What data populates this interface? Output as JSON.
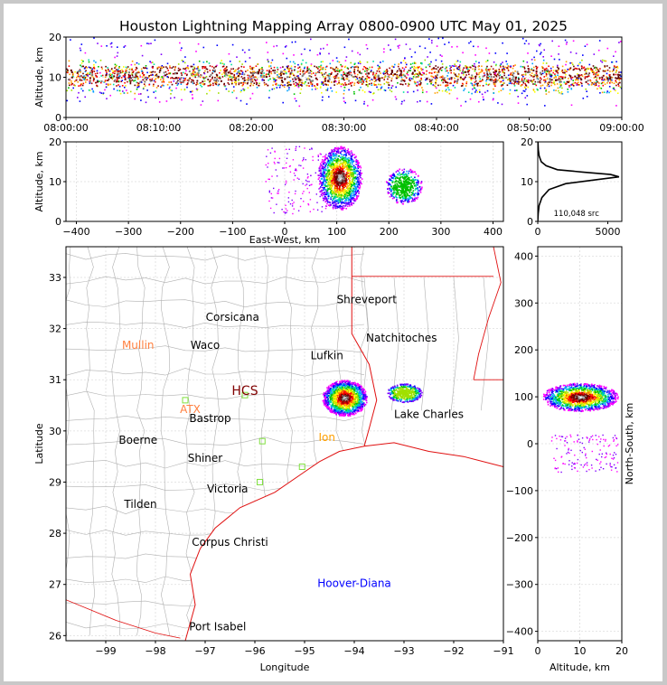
{
  "figure": {
    "title": "Houston Lightning Mapping Array 0800-0900 UTC May 01, 2025"
  },
  "colors": {
    "frame": "#c8c8c8",
    "map_lines": "#b0b0b0",
    "coast_state": "#e01010",
    "grid": "#dddddd",
    "density_scale": [
      "#ff00ff",
      "#8000ff",
      "#0000ff",
      "#00a0ff",
      "#00e0a0",
      "#00c000",
      "#a0e000",
      "#ffff00",
      "#ffa000",
      "#ff0000",
      "#a00000",
      "#600000",
      "#808080",
      "#c0c0c0",
      "#ffffff"
    ],
    "station_colors": {
      "Mullin": "#ff8040",
      "ATX": "#ff8040",
      "Hoover-Diana": "#0000ff"
    }
  },
  "chart_data": [
    {
      "id": "time_altitude",
      "type": "heatmap",
      "xlabel": "",
      "ylabel": "Altitude, km",
      "xticks": [
        "08:00:00",
        "08:10:00",
        "08:20:00",
        "08:30:00",
        "08:40:00",
        "08:50:00",
        "09:00:00"
      ],
      "ylim": [
        0,
        20
      ],
      "yticks": [
        0,
        10,
        20
      ],
      "source_band_km": {
        "core_top": 13,
        "core_bottom": 8,
        "outer_top": 14.5,
        "outer_bottom": 6
      }
    },
    {
      "id": "eastwest_altitude",
      "type": "heatmap",
      "xlabel": "East-West, km",
      "ylabel": "Altitude, km",
      "xlim": [
        -420,
        420
      ],
      "xticks": [
        -400,
        -300,
        -200,
        -100,
        0,
        100,
        200,
        300,
        400
      ],
      "ylim": [
        0,
        20
      ],
      "yticks": [
        0,
        10,
        20
      ],
      "cells": [
        {
          "x": 105,
          "alt": 11,
          "width_km": 85,
          "height_km": 16
        },
        {
          "x": 228,
          "alt": 9,
          "width_km": 70,
          "height_km": 9
        }
      ]
    },
    {
      "id": "altitude_histogram",
      "type": "line",
      "xlim": [
        0,
        6000
      ],
      "xticks": [
        0,
        5000
      ],
      "ylim": [
        0,
        20
      ],
      "yticks": [
        0,
        10,
        20
      ],
      "annotation": "110,048 src",
      "x": [
        0,
        30,
        100,
        300,
        800,
        2000,
        4200,
        5800,
        5200,
        3200,
        1400,
        600,
        250,
        100,
        40,
        10
      ],
      "y": [
        0,
        2,
        4,
        6,
        8,
        9.5,
        10.5,
        11.2,
        11.8,
        12.4,
        13,
        14,
        15,
        16.5,
        18,
        20
      ]
    },
    {
      "id": "plan_view",
      "type": "scatter",
      "xlabel": "Longitude",
      "ylabel": "Latitude",
      "xlim": [
        -99.8,
        -91.0
      ],
      "ylim": [
        25.9,
        33.6
      ],
      "xticks": [
        -99,
        -98,
        -97,
        -96,
        -95,
        -94,
        -93,
        -92,
        -91
      ],
      "yticks": [
        26,
        27,
        28,
        29,
        30,
        31,
        32,
        33
      ],
      "cells": [
        {
          "lon": -94.2,
          "lat": 30.65,
          "rx": 0.45,
          "ry": 0.35
        },
        {
          "lon": -93.0,
          "lat": 30.75,
          "rx": 0.35,
          "ry": 0.18
        }
      ]
    },
    {
      "id": "altitude_northsouth",
      "type": "heatmap",
      "xlabel": "Altitude, km",
      "ylabel": "North-South, km",
      "xlim": [
        0,
        20
      ],
      "xticks": [
        0,
        10,
        20
      ],
      "ylim": [
        -420,
        420
      ],
      "yticks": [
        -400,
        -300,
        -200,
        -100,
        0,
        100,
        200,
        300,
        400
      ],
      "cell": {
        "alt": 10,
        "ns": 100,
        "width_km": 18,
        "height_km": 60
      }
    }
  ],
  "map_labels": [
    {
      "text": "Shreveport",
      "lon": -93.75,
      "lat": 32.5,
      "color": "#000"
    },
    {
      "text": "Corsicana",
      "lon": -96.45,
      "lat": 32.15,
      "color": "#000"
    },
    {
      "text": "Natchitoches",
      "lon": -93.05,
      "lat": 31.75,
      "color": "#000"
    },
    {
      "text": "Mullin",
      "lon": -98.35,
      "lat": 31.6,
      "color": "#ff8040"
    },
    {
      "text": "Waco",
      "lon": -97.0,
      "lat": 31.6,
      "color": "#000"
    },
    {
      "text": "Lufkin",
      "lon": -94.55,
      "lat": 31.4,
      "color": "#000"
    },
    {
      "text": "HCS",
      "lon": -96.2,
      "lat": 30.7,
      "color": "#800000"
    },
    {
      "text": "ATX",
      "lon": -97.3,
      "lat": 30.35,
      "color": "#ff8040"
    },
    {
      "text": "Bastrop",
      "lon": -96.9,
      "lat": 30.17,
      "color": "#000"
    },
    {
      "text": "Lake Charles",
      "lon": -92.5,
      "lat": 30.25,
      "color": "#000"
    },
    {
      "text": "Boerne",
      "lon": -98.35,
      "lat": 29.75,
      "color": "#000"
    },
    {
      "text": "Ion",
      "lon": -94.55,
      "lat": 29.8,
      "color": "#ffa000"
    },
    {
      "text": "Shiner",
      "lon": -97.0,
      "lat": 29.4,
      "color": "#000"
    },
    {
      "text": "Victoria",
      "lon": -96.55,
      "lat": 28.8,
      "color": "#000"
    },
    {
      "text": "Tilden",
      "lon": -98.3,
      "lat": 28.5,
      "color": "#000"
    },
    {
      "text": "Corpus Christi",
      "lon": -96.5,
      "lat": 27.75,
      "color": "#000"
    },
    {
      "text": "Hoover-Diana",
      "lon": -94.0,
      "lat": 26.95,
      "color": "#0000ff"
    },
    {
      "text": "Port Isabel",
      "lon": -96.75,
      "lat": 26.1,
      "color": "#000"
    }
  ]
}
